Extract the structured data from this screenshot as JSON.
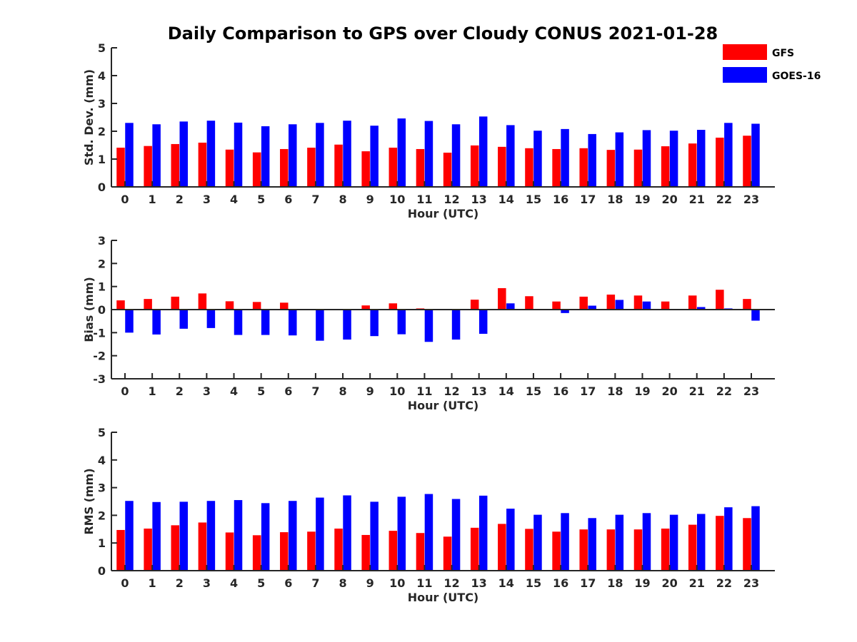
{
  "title": "Daily Comparison to GPS over Cloudy CONUS 2021-01-28",
  "legend": {
    "placement": "top-right",
    "entries": [
      {
        "name": "GFS",
        "color": "#ff0000"
      },
      {
        "name": "GOES-16",
        "color": "#0000ff"
      }
    ]
  },
  "chart_data": [
    {
      "type": "bar",
      "xlabel": "Hour (UTC)",
      "ylabel": "Std. Dev. (mm)",
      "ylim": [
        0,
        5
      ],
      "yticks": [
        "0",
        "1",
        "2",
        "3",
        "4",
        "5"
      ],
      "categories": [
        "0",
        "1",
        "2",
        "3",
        "4",
        "5",
        "6",
        "7",
        "8",
        "9",
        "10",
        "11",
        "12",
        "13",
        "14",
        "15",
        "16",
        "17",
        "18",
        "19",
        "20",
        "21",
        "22",
        "23"
      ],
      "series": [
        {
          "name": "GFS",
          "color": "#ff0000",
          "values": [
            1.41,
            1.47,
            1.54,
            1.59,
            1.34,
            1.24,
            1.36,
            1.41,
            1.52,
            1.28,
            1.41,
            1.36,
            1.23,
            1.49,
            1.44,
            1.39,
            1.36,
            1.39,
            1.33,
            1.34,
            1.46,
            1.56,
            1.77,
            1.84
          ]
        },
        {
          "name": "GOES-16",
          "color": "#0000ff",
          "values": [
            2.3,
            2.25,
            2.35,
            2.38,
            2.31,
            2.18,
            2.25,
            2.3,
            2.38,
            2.2,
            2.46,
            2.37,
            2.25,
            2.53,
            2.22,
            2.02,
            2.08,
            1.9,
            1.96,
            2.04,
            2.02,
            2.05,
            2.3,
            2.27
          ]
        }
      ]
    },
    {
      "type": "bar",
      "xlabel": "Hour (UTC)",
      "ylabel": "Bias (mm)",
      "ylim": [
        -3,
        3
      ],
      "yticks": [
        "-3",
        "-2",
        "-1",
        "0",
        "1",
        "2",
        "3"
      ],
      "categories": [
        "0",
        "1",
        "2",
        "3",
        "4",
        "5",
        "6",
        "7",
        "8",
        "9",
        "10",
        "11",
        "12",
        "13",
        "14",
        "15",
        "16",
        "17",
        "18",
        "19",
        "20",
        "21",
        "22",
        "23"
      ],
      "series": [
        {
          "name": "GFS",
          "color": "#ff0000",
          "values": [
            0.4,
            0.46,
            0.56,
            0.7,
            0.36,
            0.33,
            0.3,
            0.0,
            0.0,
            0.18,
            0.27,
            0.05,
            0.0,
            0.43,
            0.93,
            0.58,
            0.35,
            0.56,
            0.65,
            0.61,
            0.35,
            0.61,
            0.86,
            0.46
          ]
        },
        {
          "name": "GOES-16",
          "color": "#0000ff",
          "values": [
            -1.0,
            -1.08,
            -0.83,
            -0.8,
            -1.1,
            -1.1,
            -1.12,
            -1.35,
            -1.3,
            -1.15,
            -1.07,
            -1.4,
            -1.3,
            -1.05,
            0.27,
            0.03,
            -0.15,
            0.17,
            0.42,
            0.35,
            0.02,
            0.11,
            0.05,
            -0.48
          ]
        }
      ]
    },
    {
      "type": "bar",
      "xlabel": "Hour (UTC)",
      "ylabel": "RMS (mm)",
      "ylim": [
        0,
        5
      ],
      "yticks": [
        "0",
        "1",
        "2",
        "3",
        "4",
        "5"
      ],
      "categories": [
        "0",
        "1",
        "2",
        "3",
        "4",
        "5",
        "6",
        "7",
        "8",
        "9",
        "10",
        "11",
        "12",
        "13",
        "14",
        "15",
        "16",
        "17",
        "18",
        "19",
        "20",
        "21",
        "22",
        "23"
      ],
      "series": [
        {
          "name": "GFS",
          "color": "#ff0000",
          "values": [
            1.47,
            1.52,
            1.64,
            1.74,
            1.38,
            1.28,
            1.39,
            1.41,
            1.52,
            1.29,
            1.44,
            1.36,
            1.23,
            1.55,
            1.69,
            1.51,
            1.41,
            1.49,
            1.49,
            1.49,
            1.52,
            1.66,
            1.98,
            1.9
          ]
        },
        {
          "name": "GOES-16",
          "color": "#0000ff",
          "values": [
            2.52,
            2.48,
            2.49,
            2.52,
            2.55,
            2.44,
            2.52,
            2.64,
            2.72,
            2.49,
            2.67,
            2.77,
            2.59,
            2.71,
            2.24,
            2.02,
            2.08,
            1.9,
            2.02,
            2.08,
            2.02,
            2.05,
            2.29,
            2.33
          ]
        }
      ]
    }
  ]
}
